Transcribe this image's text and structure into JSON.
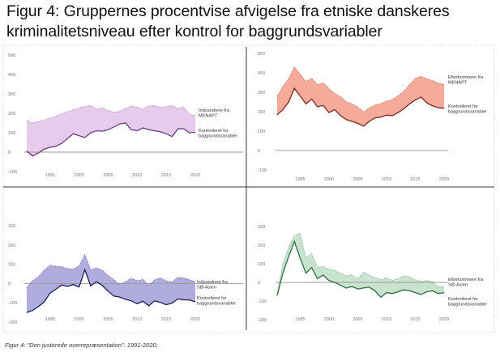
{
  "title_line1": "Figur 4: Gruppernes procentvise afvigelse fra etniske danskeres",
  "title_line2": "kriminalitetsniveau efter kontrol for baggrundsvariabler",
  "caption": "Figur 4: \"Den justerede overrepræsentation\". 1991-2020.",
  "colors": {
    "purple_fill": "#e6c8ec",
    "purple_line": "#6a3b87",
    "red_fill": "#f5a595",
    "red_line": "#7a2a22",
    "blue_fill": "#aca9dc",
    "blue_line": "#1f1d5c",
    "green_fill": "#c6e3cb",
    "green_line": "#2f6d41",
    "zero_line": "#999999",
    "divider": "#333333",
    "tick": "#777777"
  },
  "chart_data": [
    {
      "id": "menapt",
      "type": "area",
      "title": "",
      "x": [
        1991,
        1992,
        1993,
        1994,
        1995,
        1996,
        1997,
        1998,
        1999,
        2000,
        2001,
        2002,
        2003,
        2004,
        2005,
        2006,
        2007,
        2008,
        2009,
        2010,
        2011,
        2012,
        2013,
        2014,
        2015,
        2016,
        2017,
        2018,
        2019,
        2020
      ],
      "series": [
        {
          "name": "Indvandrere fra MENAPT",
          "style": "dashed",
          "values": [
            165,
            150,
            158,
            165,
            175,
            185,
            198,
            208,
            218,
            228,
            235,
            240,
            222,
            228,
            215,
            205,
            210,
            225,
            238,
            232,
            222,
            238,
            240,
            230,
            235,
            240,
            225,
            232,
            195,
            188
          ]
        },
        {
          "name": "Kontrolleret for baggrundsvariabler",
          "style": "solid",
          "values": [
            5,
            -20,
            -5,
            15,
            25,
            30,
            45,
            70,
            95,
            85,
            75,
            100,
            110,
            108,
            115,
            130,
            145,
            150,
            115,
            110,
            125,
            115,
            110,
            105,
            95,
            80,
            120,
            120,
            100,
            102
          ]
        }
      ],
      "labels": [
        "Indvandrere fra",
        "MENAPT",
        "Kontrolleret for",
        "baggrundsvariabler"
      ],
      "ylim": [
        -100,
        500
      ],
      "yticks": [
        "500",
        "400",
        "300",
        "200",
        "100",
        "0",
        "-100"
      ],
      "xticks": [
        "1995",
        "2000",
        "2005",
        "2010",
        "2015",
        "2020"
      ]
    },
    {
      "id": "efterkommere-menapt",
      "type": "area",
      "title": "",
      "x": [
        1991,
        1992,
        1993,
        1994,
        1995,
        1996,
        1997,
        1998,
        1999,
        2000,
        2001,
        2002,
        2003,
        2004,
        2005,
        2006,
        2007,
        2008,
        2009,
        2010,
        2011,
        2012,
        2013,
        2014,
        2015,
        2016,
        2017,
        2018,
        2019,
        2020
      ],
      "series": [
        {
          "name": "Efterkommere fra MENAPT",
          "style": "dashed",
          "values": [
            280,
            330,
            370,
            430,
            395,
            355,
            372,
            340,
            348,
            320,
            295,
            278,
            252,
            240,
            225,
            200,
            220,
            235,
            242,
            255,
            262,
            282,
            305,
            340,
            372,
            382,
            370,
            360,
            348,
            340
          ]
        },
        {
          "name": "Kontrolleret for baggrundsvariabler",
          "style": "solid",
          "values": [
            185,
            210,
            250,
            320,
            280,
            240,
            265,
            225,
            232,
            195,
            210,
            180,
            160,
            150,
            140,
            125,
            150,
            168,
            172,
            182,
            180,
            195,
            215,
            240,
            260,
            275,
            245,
            230,
            220,
            218
          ]
        }
      ],
      "labels": [
        "Efterkommere fra",
        "MENAPT",
        "Kontrolleret for",
        "baggrundsvariabler"
      ],
      "ylim": [
        -100,
        500
      ],
      "yticks": [
        "500",
        "400",
        "300",
        "200",
        "100",
        "0",
        "-100"
      ],
      "xticks": [
        "1995",
        "2000",
        "2005",
        "2010",
        "2015",
        "2020"
      ]
    },
    {
      "id": "so-asien",
      "type": "area",
      "title": "",
      "x": [
        1991,
        1992,
        1993,
        1994,
        1995,
        1996,
        1997,
        1998,
        1999,
        2000,
        2001,
        2002,
        2003,
        2004,
        2005,
        2006,
        2007,
        2008,
        2009,
        2010,
        2011,
        2012,
        2013,
        2014,
        2015,
        2016,
        2017,
        2018,
        2019,
        2020
      ],
      "series": [
        {
          "name": "Indvandrere fra SØ-Asien",
          "style": "dashed",
          "values": [
            -20,
            15,
            35,
            70,
            95,
            90,
            88,
            78,
            75,
            92,
            150,
            72,
            82,
            70,
            42,
            20,
            -5,
            10,
            28,
            15,
            22,
            -10,
            20,
            30,
            14,
            10,
            32,
            30,
            20,
            10
          ]
        },
        {
          "name": "Kontrolleret for baggrundsvariabler",
          "style": "solid",
          "values": [
            -150,
            -140,
            -120,
            -95,
            -50,
            -30,
            -8,
            -15,
            -5,
            -18,
            72,
            -12,
            10,
            -10,
            -40,
            -65,
            -70,
            -82,
            -90,
            -105,
            -92,
            -115,
            -90,
            -98,
            -110,
            -102,
            -80,
            -85,
            -85,
            -95
          ]
        }
      ],
      "labels": [
        "Indvandrere fra",
        "SØ-Asien",
        "Kontrolleret for",
        "baggrundsvariabler"
      ],
      "ylim": [
        -200,
        300
      ],
      "yticks": [
        "300",
        "200",
        "100",
        "0",
        "-100",
        "-200"
      ],
      "xticks": [
        "1995",
        "2000",
        "2005",
        "2010",
        "2015",
        "2020"
      ]
    },
    {
      "id": "efterkommere-so-asien",
      "type": "area",
      "title": "",
      "x": [
        1991,
        1992,
        1993,
        1994,
        1995,
        1996,
        1997,
        1998,
        1999,
        2000,
        2001,
        2002,
        2003,
        2004,
        2005,
        2006,
        2007,
        2008,
        2009,
        2010,
        2011,
        2012,
        2013,
        2014,
        2015,
        2016,
        2017,
        2018,
        2019,
        2020
      ],
      "series": [
        {
          "name": "Efterkommere fra SØ-Asien",
          "style": "dashed",
          "values": [
            -60,
            100,
            190,
            250,
            265,
            130,
            155,
            80,
            85,
            70,
            65,
            50,
            35,
            40,
            20,
            55,
            40,
            25,
            15,
            25,
            10,
            20,
            35,
            30,
            15,
            5,
            10,
            5,
            -25,
            -20
          ]
        },
        {
          "name": "Kontrolleret for baggrundsvariabler",
          "style": "solid",
          "values": [
            -70,
            50,
            140,
            220,
            130,
            50,
            80,
            20,
            40,
            10,
            0,
            -15,
            -30,
            -22,
            -35,
            -30,
            -25,
            -45,
            -80,
            -55,
            -60,
            -50,
            -40,
            -45,
            -55,
            -65,
            -50,
            -45,
            -60,
            -55
          ]
        }
      ],
      "labels": [
        "Efterkommere fra",
        "SØ-Asien",
        "Kontrolleret for",
        "baggrundsvariabler"
      ],
      "ylim": [
        -200,
        300
      ],
      "yticks": [
        "300",
        "200",
        "100",
        "0",
        "-100",
        "-200"
      ],
      "xticks": [
        "1995",
        "2000",
        "2005",
        "2010",
        "2015",
        "2020"
      ]
    }
  ]
}
